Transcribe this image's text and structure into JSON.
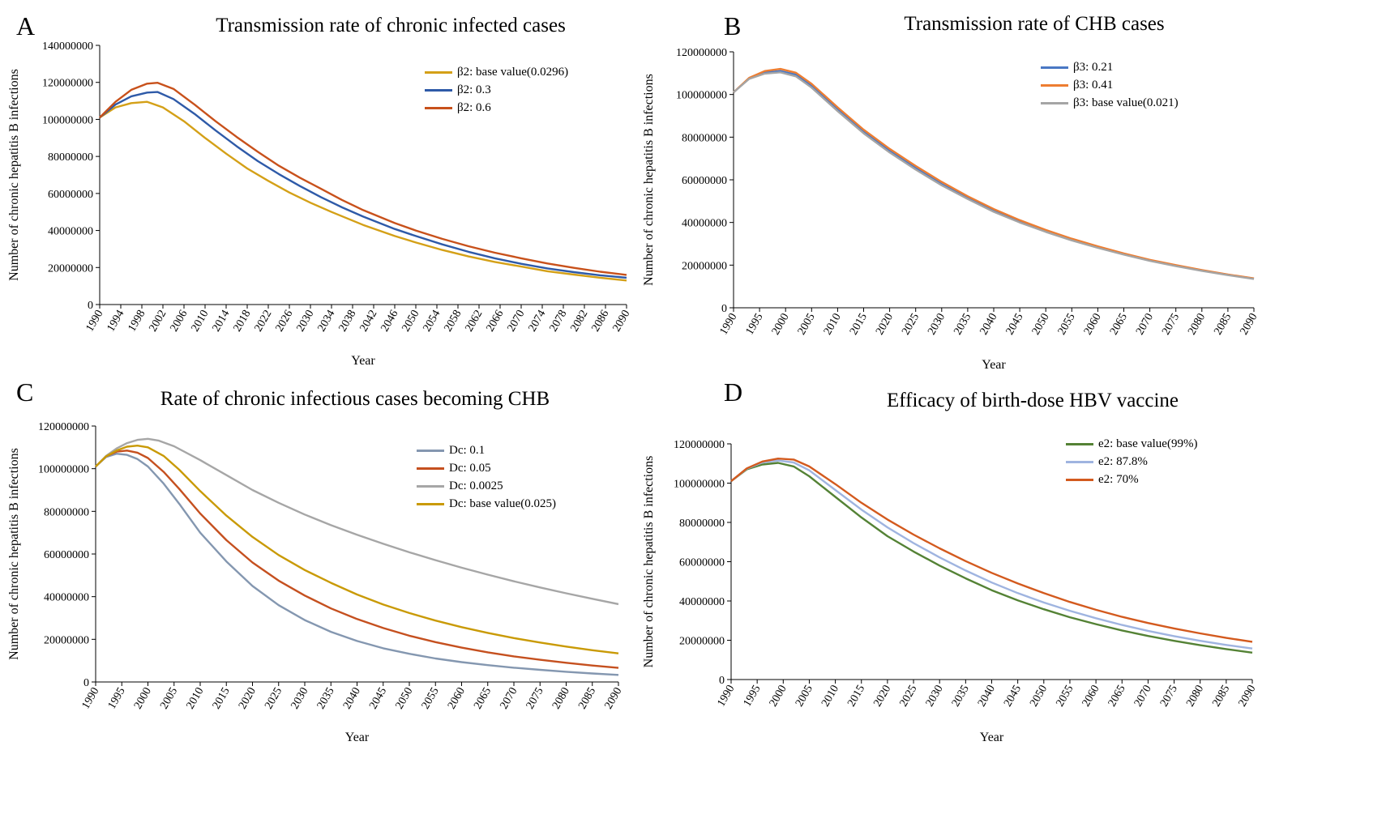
{
  "chart_data": [
    {
      "panel_label": "A",
      "type": "line",
      "title": "Transmission rate of chronic infected cases",
      "xlabel": "Year",
      "ylabel": "Number of chronic hepatitis B infections",
      "xlim": [
        1990,
        2090
      ],
      "ylim": [
        0,
        140000000
      ],
      "ytick_labels": [
        "0",
        "20000000",
        "40000000",
        "60000000",
        "80000000",
        "100000000",
        "120000000",
        "140000000"
      ],
      "xtick_labels": [
        "1990",
        "1994",
        "1998",
        "2002",
        "2006",
        "2010",
        "2014",
        "2018",
        "2022",
        "2026",
        "2030",
        "2034",
        "2038",
        "2042",
        "2046",
        "2050",
        "2054",
        "2058",
        "2062",
        "2066",
        "2070",
        "2074",
        "2078",
        "2082",
        "2086",
        "2090"
      ],
      "legend_position": "top-right",
      "series": [
        {
          "name": "β2: base value(0.0296)",
          "color": "#d4a017",
          "x": [
            1990,
            1993,
            1996,
            1999,
            2002,
            2006,
            2010,
            2014,
            2018,
            2022,
            2026,
            2030,
            2034,
            2040,
            2046,
            2050,
            2055,
            2060,
            2065,
            2070,
            2075,
            2080,
            2085,
            2090
          ],
          "y": [
            101000000,
            106500000,
            108800000,
            109500000,
            106500000,
            99000000,
            90000000,
            81500000,
            73500000,
            66800000,
            60500000,
            55000000,
            50000000,
            43000000,
            37000000,
            33500000,
            29500000,
            26000000,
            23000000,
            20500000,
            18000000,
            16200000,
            14500000,
            13000000
          ]
        },
        {
          "name": "β2: 0.3",
          "color": "#2e5aa8",
          "x": [
            1990,
            1993,
            1996,
            1999,
            2001,
            2004,
            2008,
            2012,
            2016,
            2020,
            2024,
            2028,
            2032,
            2036,
            2040,
            2046,
            2050,
            2055,
            2060,
            2065,
            2070,
            2075,
            2080,
            2085,
            2090
          ],
          "y": [
            101000000,
            108000000,
            112500000,
            114500000,
            114800000,
            111000000,
            103000000,
            94000000,
            85500000,
            77500000,
            70500000,
            64000000,
            58000000,
            52500000,
            47500000,
            40800000,
            37000000,
            32500000,
            28500000,
            25000000,
            22000000,
            19500000,
            17500000,
            15800000,
            14500000
          ]
        },
        {
          "name": "β2: 0.6",
          "color": "#c8511b",
          "x": [
            1990,
            1993,
            1996,
            1999,
            2001,
            2004,
            2008,
            2012,
            2016,
            2020,
            2024,
            2028,
            2032,
            2036,
            2040,
            2046,
            2050,
            2055,
            2060,
            2065,
            2070,
            2075,
            2080,
            2085,
            2090
          ],
          "y": [
            101000000,
            109500000,
            116000000,
            119300000,
            119800000,
            116500000,
            108000000,
            99000000,
            90500000,
            82500000,
            75000000,
            68500000,
            62500000,
            56500000,
            51000000,
            44000000,
            40000000,
            35500000,
            31500000,
            28000000,
            25000000,
            22200000,
            19800000,
            17700000,
            16000000
          ]
        }
      ]
    },
    {
      "panel_label": "B",
      "type": "line",
      "title": "Transmission rate of CHB cases",
      "xlabel": "Year",
      "ylabel": "Number of chronic hepatitis B infections",
      "xlim": [
        1990,
        2090
      ],
      "ylim": [
        0,
        120000000
      ],
      "ytick_labels": [
        "0",
        "20000000",
        "40000000",
        "60000000",
        "80000000",
        "100000000",
        "120000000"
      ],
      "xtick_labels": [
        "1990",
        "1995",
        "2000",
        "2005",
        "2010",
        "2015",
        "2020",
        "2025",
        "2030",
        "2035",
        "2040",
        "2045",
        "2050",
        "2055",
        "2060",
        "2065",
        "2070",
        "2075",
        "2080",
        "2085",
        "2090"
      ],
      "legend_position": "top-right",
      "series": [
        {
          "name": "β3: 0.21",
          "color": "#4a78c4",
          "x": [
            1990,
            1993,
            1996,
            1999,
            2002,
            2005,
            2010,
            2015,
            2020,
            2025,
            2030,
            2035,
            2040,
            2045,
            2050,
            2055,
            2060,
            2065,
            2070,
            2075,
            2080,
            2085,
            2090
          ],
          "y": [
            101000000,
            107500000,
            110300000,
            111000000,
            109300000,
            104000000,
            93000000,
            82500000,
            73500000,
            65500000,
            58000000,
            51500000,
            45500000,
            40500000,
            36000000,
            32000000,
            28500000,
            25200000,
            22300000,
            19800000,
            17500000,
            15500000,
            13700000
          ]
        },
        {
          "name": "β3: 0.41",
          "color": "#ed7d31",
          "x": [
            1990,
            1993,
            1996,
            1999,
            2002,
            2005,
            2010,
            2015,
            2020,
            2025,
            2030,
            2035,
            2040,
            2045,
            2050,
            2055,
            2060,
            2065,
            2070,
            2075,
            2080,
            2085,
            2090
          ],
          "y": [
            101000000,
            107800000,
            111000000,
            112000000,
            110200000,
            105000000,
            94000000,
            83500000,
            74500000,
            66500000,
            59000000,
            52300000,
            46300000,
            41100000,
            36500000,
            32400000,
            28800000,
            25500000,
            22500000,
            20000000,
            17700000,
            15600000,
            13800000
          ]
        },
        {
          "name": "β3: base value(0.021)",
          "color": "#a5a5a5",
          "x": [
            1990,
            1993,
            1996,
            1999,
            2002,
            2005,
            2010,
            2015,
            2020,
            2025,
            2030,
            2035,
            2040,
            2045,
            2050,
            2055,
            2060,
            2065,
            2070,
            2075,
            2080,
            2085,
            2090
          ],
          "y": [
            101000000,
            107300000,
            109800000,
            110400000,
            108500000,
            103200000,
            92200000,
            81800000,
            72800000,
            64800000,
            57400000,
            51000000,
            45000000,
            40000000,
            35600000,
            31600000,
            28100000,
            24900000,
            22000000,
            19500000,
            17300000,
            15300000,
            13500000
          ]
        }
      ]
    },
    {
      "panel_label": "C",
      "type": "line",
      "title": "Rate of chronic infectious cases becoming CHB",
      "xlabel": "Year",
      "ylabel": "Number of chronic hepatitis B infections",
      "xlim": [
        1990,
        2090
      ],
      "ylim": [
        0,
        120000000
      ],
      "ytick_labels": [
        "0",
        "20000000",
        "40000000",
        "60000000",
        "80000000",
        "100000000",
        "120000000"
      ],
      "xtick_labels": [
        "1990",
        "1995",
        "2000",
        "2005",
        "2010",
        "2015",
        "2020",
        "2025",
        "2030",
        "2035",
        "2040",
        "2045",
        "2050",
        "2055",
        "2060",
        "2065",
        "2070",
        "2075",
        "2080",
        "2085",
        "2090"
      ],
      "legend_position": "top-right",
      "series": [
        {
          "name": "Dc: 0.1",
          "color": "#8497b0",
          "x": [
            1990,
            1992,
            1994,
            1996,
            1998,
            2000,
            2003,
            2006,
            2010,
            2015,
            2020,
            2025,
            2030,
            2035,
            2040,
            2045,
            2050,
            2055,
            2060,
            2065,
            2070,
            2075,
            2080,
            2085,
            2090
          ],
          "y": [
            101000000,
            105500000,
            107000000,
            106500000,
            104500000,
            101000000,
            93000000,
            83500000,
            70000000,
            56500000,
            45000000,
            36000000,
            29000000,
            23500000,
            19200000,
            15800000,
            13200000,
            11000000,
            9300000,
            7900000,
            6700000,
            5700000,
            4800000,
            4000000,
            3300000
          ]
        },
        {
          "name": "Dc: 0.05",
          "color": "#c5501f",
          "x": [
            1990,
            1992,
            1994,
            1996,
            1998,
            2000,
            2003,
            2006,
            2010,
            2015,
            2020,
            2025,
            2030,
            2035,
            2040,
            2045,
            2050,
            2055,
            2060,
            2065,
            2070,
            2075,
            2080,
            2085,
            2090
          ],
          "y": [
            101000000,
            105800000,
            108000000,
            108500000,
            107500000,
            105000000,
            98500000,
            90500000,
            79000000,
            66500000,
            56000000,
            47500000,
            40500000,
            34500000,
            29500000,
            25300000,
            21700000,
            18700000,
            16100000,
            13900000,
            12000000,
            10400000,
            9000000,
            7700000,
            6600000
          ]
        },
        {
          "name": "Dc: 0.0025",
          "color": "#a6a6a6",
          "x": [
            1990,
            1992,
            1994,
            1996,
            1998,
            2000,
            2002,
            2005,
            2010,
            2015,
            2020,
            2025,
            2030,
            2035,
            2040,
            2045,
            2050,
            2055,
            2060,
            2065,
            2070,
            2075,
            2080,
            2085,
            2090
          ],
          "y": [
            101000000,
            106000000,
            109500000,
            112000000,
            113500000,
            114000000,
            113200000,
            110500000,
            104000000,
            97000000,
            90000000,
            84000000,
            78500000,
            73500000,
            69000000,
            64800000,
            60800000,
            57100000,
            53600000,
            50300000,
            47200000,
            44300000,
            41600000,
            39000000,
            36500000
          ]
        },
        {
          "name": "Dc: base value(0.025)",
          "color": "#c99a06",
          "x": [
            1990,
            1992,
            1994,
            1996,
            1998,
            2000,
            2003,
            2006,
            2010,
            2015,
            2020,
            2025,
            2030,
            2035,
            2040,
            2045,
            2050,
            2055,
            2060,
            2065,
            2070,
            2075,
            2080,
            2085,
            2090
          ],
          "y": [
            101000000,
            105800000,
            108500000,
            110300000,
            110800000,
            110000000,
            106000000,
            99500000,
            89500000,
            78000000,
            68000000,
            59500000,
            52500000,
            46500000,
            41000000,
            36300000,
            32300000,
            28800000,
            25700000,
            23000000,
            20600000,
            18500000,
            16600000,
            14900000,
            13400000
          ]
        }
      ]
    },
    {
      "panel_label": "D",
      "type": "line",
      "title": "Efficacy of birth-dose  HBV vaccine",
      "xlabel": "Year",
      "ylabel": "Number of chronic hepatitis B infections",
      "xlim": [
        1990,
        2090
      ],
      "ylim": [
        0,
        120000000
      ],
      "ytick_labels": [
        "0",
        "20000000",
        "40000000",
        "60000000",
        "80000000",
        "100000000",
        "120000000"
      ],
      "xtick_labels": [
        "1990",
        "1995",
        "2000",
        "2005",
        "2010",
        "2015",
        "2020",
        "2025",
        "2030",
        "2035",
        "2040",
        "2045",
        "2050",
        "2055",
        "2060",
        "2065",
        "2070",
        "2075",
        "2080",
        "2085",
        "2090"
      ],
      "legend_position": "top-right",
      "series": [
        {
          "name": "e2: base value(99%)",
          "color": "#548235",
          "x": [
            1990,
            1993,
            1996,
            1999,
            2002,
            2005,
            2010,
            2015,
            2020,
            2025,
            2030,
            2035,
            2040,
            2045,
            2050,
            2055,
            2060,
            2065,
            2070,
            2075,
            2080,
            2085,
            2090
          ],
          "y": [
            101000000,
            107000000,
            109500000,
            110300000,
            108500000,
            103500000,
            93000000,
            82500000,
            73000000,
            65200000,
            58000000,
            51500000,
            45500000,
            40300000,
            35800000,
            31700000,
            28200000,
            25000000,
            22200000,
            19700000,
            17500000,
            15500000,
            13700000
          ]
        },
        {
          "name": "e2: 87.8%",
          "color": "#9fb4e0",
          "x": [
            1990,
            1993,
            1996,
            1999,
            2002,
            2005,
            2010,
            2015,
            2020,
            2025,
            2030,
            2035,
            2040,
            2045,
            2050,
            2055,
            2060,
            2065,
            2070,
            2075,
            2080,
            2085,
            2090
          ],
          "y": [
            101000000,
            107300000,
            110500000,
            111500000,
            110500000,
            106500000,
            96500000,
            86500000,
            77500000,
            69500000,
            62200000,
            55500000,
            49400000,
            44000000,
            39200000,
            35000000,
            31200000,
            27800000,
            24800000,
            22100000,
            19700000,
            17600000,
            15800000
          ]
        },
        {
          "name": "e2: 70%",
          "color": "#d35a1e",
          "x": [
            1990,
            1993,
            1996,
            1999,
            2002,
            2005,
            2010,
            2015,
            2020,
            2025,
            2030,
            2035,
            2040,
            2045,
            2050,
            2055,
            2060,
            2065,
            2070,
            2075,
            2080,
            2085,
            2090
          ],
          "y": [
            101000000,
            107500000,
            111000000,
            112500000,
            112000000,
            108500000,
            99500000,
            90000000,
            81500000,
            73800000,
            66800000,
            60300000,
            54300000,
            48900000,
            44000000,
            39500000,
            35500000,
            31900000,
            28800000,
            26000000,
            23500000,
            21200000,
            19200000
          ]
        }
      ]
    }
  ]
}
